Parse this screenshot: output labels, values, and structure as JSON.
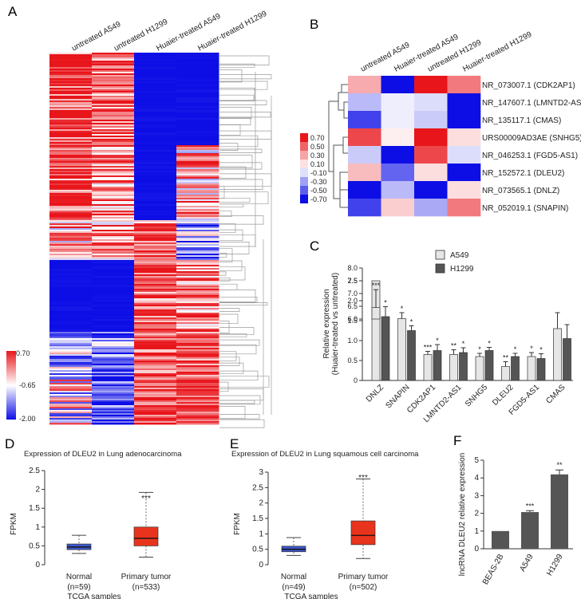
{
  "panels": {
    "A": {
      "letter": "A",
      "column_labels": [
        "untreated A549",
        "untreated H1299",
        "Huaier-treated A549",
        "Huaier-treated H1299"
      ],
      "color_scale": [
        "0.70",
        "-0.65",
        "-2.00"
      ],
      "colors": {
        "high": "#e8151b",
        "mid": "#ffffff",
        "low": "#0d0ee6"
      }
    },
    "B": {
      "letter": "B",
      "column_labels": [
        "untreated A549",
        "Huaier-treated A549",
        "untreated H1299",
        "Huaier-treated H1299"
      ],
      "row_labels": [
        "NR_073007.1 (CDK2AP1)",
        "NR_147607.1 (LMNTD2-AS1)",
        "NR_135117.1 (CMAS)",
        "URS00009AD3AE (SNHG5)",
        "NR_046253.1 (FGD5-AS1)",
        "NR_152572.1 (DLEU2)",
        "NR_073565.1 (DNLZ)",
        "NR_052019.1 (SNAPIN)"
      ],
      "legend": [
        "0.70",
        "0.50",
        "0.30",
        "0.10",
        "-0.10",
        "-0.30",
        "-0.50",
        "-0.70"
      ],
      "values": [
        [
          0.25,
          -0.7,
          0.7,
          0.4
        ],
        [
          -0.2,
          -0.05,
          -0.1,
          -0.7
        ],
        [
          -0.55,
          -0.05,
          -0.15,
          -0.7
        ],
        [
          0.55,
          0.05,
          0.7,
          0.1
        ],
        [
          -0.15,
          -0.7,
          0.55,
          -0.1
        ],
        [
          0.2,
          -0.45,
          0.1,
          -0.7
        ],
        [
          -0.7,
          -0.2,
          -0.7,
          0.1
        ],
        [
          -0.55,
          0.15,
          -0.25,
          0.4
        ]
      ]
    },
    "C": {
      "letter": "C",
      "legend": [
        "A549",
        "H1299"
      ]
    },
    "D": {
      "letter": "D",
      "title": "Expression of DLEU2 in Lung adenocarcinoma",
      "ylabel": "FPKM",
      "xlabel": "TCGA samples",
      "groups": [
        {
          "name": "Normal",
          "n": "(n=59)"
        },
        {
          "name": "Primary tumor",
          "n": "(n=533)"
        }
      ],
      "sig": "***"
    },
    "E": {
      "letter": "E",
      "title": "Expression of DLEU2 in Lung squamous cell carcinoma",
      "ylabel": "FPKM",
      "xlabel": "TCGA samples",
      "groups": [
        {
          "name": "Normal",
          "n": "(n=49)"
        },
        {
          "name": "Primary tumor",
          "n": "(n=502)"
        }
      ],
      "sig": "***"
    },
    "F": {
      "letter": "F"
    }
  },
  "chart_data": [
    {
      "id": "C",
      "type": "bar",
      "ylabel": "Relative expression (Huaier-treated vs untreated)",
      "categories": [
        "DNLZ",
        "SNAPIN",
        "CDK2AP1",
        "LMNTD2-AS1",
        "SNHG5",
        "DLEU2",
        "FGD5-AS1",
        "CMAS"
      ],
      "series": [
        {
          "name": "A549",
          "color": "#e6e6e6",
          "values": [
            6.45,
            1.55,
            0.65,
            0.65,
            0.6,
            0.35,
            0.6,
            1.3
          ],
          "errors": [
            0.7,
            0.15,
            0.08,
            0.12,
            0.08,
            0.12,
            0.1,
            0.4
          ],
          "sig": [
            "***",
            "*",
            "***",
            "**",
            "*",
            "**",
            "*",
            ""
          ]
        },
        {
          "name": "H1299",
          "color": "#555555",
          "values": [
            1.6,
            1.25,
            0.75,
            0.7,
            0.75,
            0.6,
            0.55,
            1.05
          ],
          "errors": [
            0.25,
            0.12,
            0.15,
            0.12,
            0.08,
            0.08,
            0.12,
            0.35
          ],
          "sig": [
            "*",
            "*",
            "*",
            "*",
            "*",
            "*",
            "*",
            ""
          ]
        }
      ],
      "y_ticks_lower": [
        "0",
        "0.5",
        "1.0",
        "1.5",
        "2.0",
        "2.5"
      ],
      "y_ticks_upper": [
        "6.0",
        "6.5",
        "7.0",
        "7.5",
        "8.0"
      ],
      "axis_break": [
        2.5,
        6.0
      ]
    },
    {
      "id": "D",
      "type": "box",
      "ylim": [
        0,
        2.5
      ],
      "y_ticks": [
        "0",
        "0.5",
        "1",
        "1.5",
        "2",
        "2.5"
      ],
      "boxes": [
        {
          "name": "Normal",
          "color": "#3d56c8",
          "min": 0.3,
          "q1": 0.4,
          "median": 0.47,
          "q3": 0.55,
          "max": 0.78
        },
        {
          "name": "Primary tumor",
          "color": "#e8341c",
          "min": 0.2,
          "q1": 0.5,
          "median": 0.7,
          "q3": 1.0,
          "max": 1.92
        }
      ]
    },
    {
      "id": "E",
      "type": "box",
      "ylim": [
        0,
        3
      ],
      "y_ticks": [
        "0",
        "0.5",
        "1",
        "1.5",
        "2",
        "2.5",
        "3"
      ],
      "boxes": [
        {
          "name": "Normal",
          "color": "#3d56c8",
          "min": 0.3,
          "q1": 0.42,
          "median": 0.5,
          "q3": 0.6,
          "max": 0.88
        },
        {
          "name": "Primary tumor",
          "color": "#e8341c",
          "min": 0.2,
          "q1": 0.65,
          "median": 0.95,
          "q3": 1.42,
          "max": 2.78
        }
      ]
    },
    {
      "id": "F",
      "type": "bar",
      "ylabel": "lncRNA DLEU2 relative expression",
      "ylim": [
        0,
        5
      ],
      "y_ticks": [
        "0",
        "1",
        "2",
        "3",
        "4",
        "5"
      ],
      "categories": [
        "BEAS-2B",
        "A549",
        "H1299"
      ],
      "values": [
        1.0,
        2.07,
        4.2
      ],
      "errors": [
        0,
        0.08,
        0.25
      ],
      "sig": [
        "",
        "***",
        "**"
      ],
      "color": "#555555"
    }
  ]
}
